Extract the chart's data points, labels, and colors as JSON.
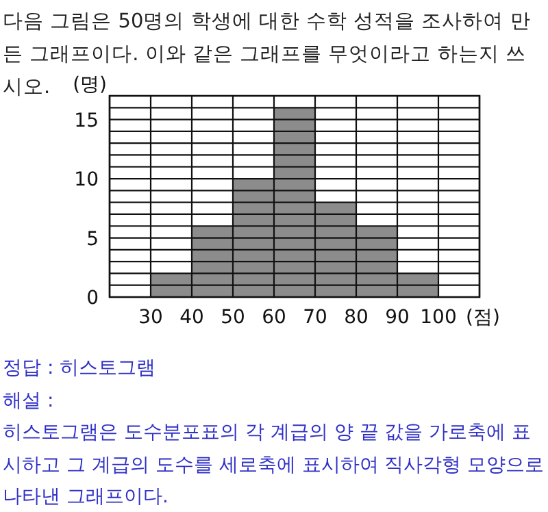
{
  "chart_data": {
    "type": "histogram",
    "title": "다음 그림은 50명의 학생에 대한 수학 성적을 조사하여 만든 그래프이다. 이와 같은 그래프를 무엇이라고 하는지 쓰시오.",
    "bins": [
      30,
      40,
      50,
      60,
      70,
      80,
      90,
      100
    ],
    "values": [
      2,
      6,
      10,
      16,
      8,
      6,
      2
    ],
    "color": "#8c8c8c",
    "xlabel": "(점)",
    "ylabel": "(명)",
    "xlim": [
      20,
      110
    ],
    "ylim": [
      0,
      17
    ],
    "xticks": [
      {
        "value": 20,
        "label": null
      },
      30,
      40,
      50,
      60,
      70,
      80,
      90,
      100,
      {
        "value": 110,
        "label": null
      }
    ],
    "yticks": [
      0,
      {
        "value": 1,
        "label": null
      },
      {
        "value": 2,
        "label": null
      },
      {
        "value": 3,
        "label": null
      },
      {
        "value": 4,
        "label": null
      },
      5,
      {
        "value": 6,
        "label": null
      },
      {
        "value": 7,
        "label": null
      },
      {
        "value": 8,
        "label": null
      },
      {
        "value": 9,
        "label": null
      },
      10,
      {
        "value": 11,
        "label": null
      },
      {
        "value": 12,
        "label": null
      },
      {
        "value": 13,
        "label": null
      },
      {
        "value": 14,
        "label": null
      },
      15,
      {
        "value": 16,
        "label": null
      },
      {
        "value": 17,
        "label": null
      }
    ],
    "grid": true,
    "annotations": [
      "정답 : 히스토그램",
      "해설 :",
      "히스토그램은 도수분포표의 각 계급의 양 끝 값을 가로축에 표시하고 그 계급의 도수를 세로축에 표시하여 직사각형 모양으로 나타낸 그래프이다."
    ]
  }
}
